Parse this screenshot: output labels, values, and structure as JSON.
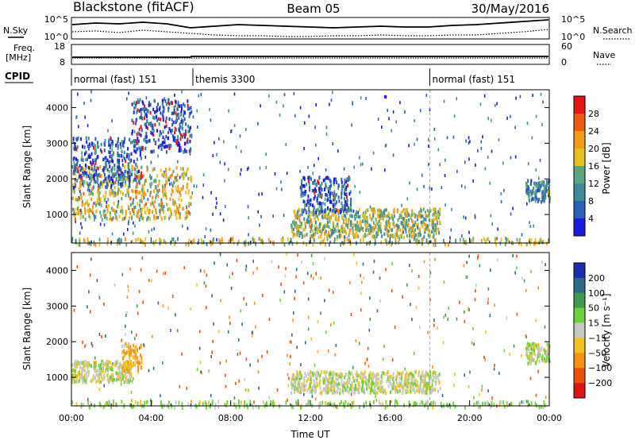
{
  "header": {
    "station": "Blackstone (fitACF)",
    "beam": "Beam 05",
    "date": "30/May/2016"
  },
  "top_panels": {
    "nsky_label": "N.Sky",
    "nsearch_label": "N.Search",
    "freq_label_1": "Freq.",
    "freq_label_2": "[MHz]",
    "nave_label": "Nave",
    "cpid_label": "CPID",
    "count_ticks": [
      "10^5",
      "10^0"
    ],
    "freq_ticks": [
      "18",
      "8"
    ],
    "nave_ticks": [
      "60",
      "0"
    ]
  },
  "cpid": {
    "segments": [
      {
        "start_hour": 0.0,
        "end_hour": 6.1,
        "label": "normal (fast) 151"
      },
      {
        "start_hour": 6.1,
        "end_hour": 18.0,
        "label": "themis 3300"
      },
      {
        "start_hour": 18.0,
        "end_hour": 24.0,
        "label": "normal (fast) 151"
      }
    ]
  },
  "chart_data": [
    {
      "type": "heatmap",
      "panel": "power",
      "ylabel": "Slant Range [km]",
      "xlim_hours": [
        0,
        24
      ],
      "ylim_km": [
        200,
        4500
      ],
      "yticks": [
        1000,
        2000,
        3000,
        4000
      ],
      "colorbar": {
        "label": "Power [dB]",
        "ticks": [
          "4",
          "8",
          "12",
          "16",
          "20",
          "24",
          "28"
        ],
        "levels": [
          {
            "min": 0,
            "max": 4,
            "color": "#1a1ae6"
          },
          {
            "min": 4,
            "max": 8,
            "color": "#2a5fb8"
          },
          {
            "min": 8,
            "max": 12,
            "color": "#3e8a9a"
          },
          {
            "min": 12,
            "max": 16,
            "color": "#5aa880"
          },
          {
            "min": 16,
            "max": 20,
            "color": "#e6c21e"
          },
          {
            "min": 20,
            "max": 24,
            "color": "#f39a16"
          },
          {
            "min": 24,
            "max": 28,
            "color": "#ee5a12"
          },
          {
            "min": 28,
            "max": 32,
            "color": "#e61414"
          }
        ]
      },
      "features": [
        {
          "t0": 0.0,
          "t1": 6.0,
          "r0": 900,
          "r1": 2400,
          "value": 18
        },
        {
          "t0": 0.0,
          "t1": 3.5,
          "r0": 1800,
          "r1": 3200,
          "value": 6
        },
        {
          "t0": 3.0,
          "t1": 6.0,
          "r0": 2800,
          "r1": 4300,
          "value": 5
        },
        {
          "t0": 11.0,
          "t1": 18.5,
          "r0": 400,
          "r1": 1200,
          "value": 16
        },
        {
          "t0": 11.5,
          "t1": 14.0,
          "r0": 1100,
          "r1": 2100,
          "value": 6
        },
        {
          "t0": 22.8,
          "t1": 24.0,
          "r0": 1400,
          "r1": 2000,
          "value": 10
        }
      ]
    },
    {
      "type": "heatmap",
      "panel": "velocity",
      "xlabel": "Time UT",
      "ylabel": "Slant Range [km]",
      "xlim_hours": [
        0,
        24
      ],
      "ylim_km": [
        200,
        4500
      ],
      "yticks": [
        1000,
        2000,
        3000,
        4000
      ],
      "xticks": [
        "00:00",
        "04:00",
        "08:00",
        "12:00",
        "16:00",
        "20:00",
        "00:00"
      ],
      "colorbar": {
        "label": "Velocity [m s⁻¹]",
        "ticks": [
          "200",
          "100",
          "50",
          "15",
          "−15",
          "−50",
          "−100",
          "−200"
        ],
        "levels": [
          {
            "min": 200,
            "max": 300,
            "color": "#1c2bb0"
          },
          {
            "min": 100,
            "max": 200,
            "color": "#2f6a8c"
          },
          {
            "min": 50,
            "max": 100,
            "color": "#3f9a52"
          },
          {
            "min": 15,
            "max": 50,
            "color": "#6cd23a"
          },
          {
            "min": -15,
            "max": 15,
            "color": "#c8c8c2"
          },
          {
            "min": -50,
            "max": -15,
            "color": "#f3c21e"
          },
          {
            "min": -100,
            "max": -50,
            "color": "#f59212"
          },
          {
            "min": -200,
            "max": -100,
            "color": "#f0500e"
          },
          {
            "min": -300,
            "max": -200,
            "color": "#e01212"
          }
        ]
      },
      "features": [
        {
          "t0": 0.0,
          "t1": 3.0,
          "r0": 900,
          "r1": 1500,
          "value": 0
        },
        {
          "t0": 2.5,
          "t1": 3.5,
          "r0": 1200,
          "r1": 2000,
          "value": -40
        },
        {
          "t0": 11.0,
          "t1": 18.5,
          "r0": 600,
          "r1": 1200,
          "value": 0
        },
        {
          "t0": 22.8,
          "t1": 24.0,
          "r0": 1400,
          "r1": 2000,
          "value": 5
        }
      ]
    }
  ]
}
